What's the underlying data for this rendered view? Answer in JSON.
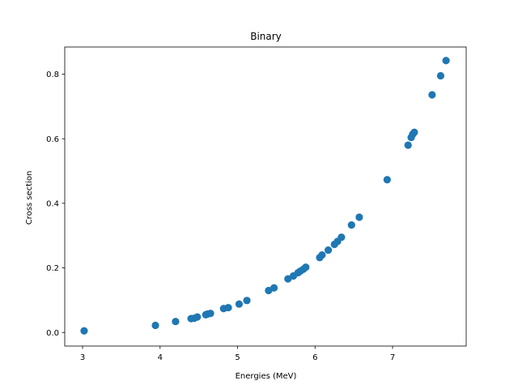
{
  "chart_data": {
    "type": "scatter",
    "title": "Binary",
    "xlabel": "Energies (MeV)",
    "ylabel": "Cross section",
    "xlim": [
      2.77,
      7.95
    ],
    "ylim": [
      -0.042,
      0.884
    ],
    "xticks": [
      3,
      4,
      5,
      6,
      7
    ],
    "xtick_labels": [
      "3",
      "4",
      "5",
      "6",
      "7"
    ],
    "yticks": [
      0.0,
      0.2,
      0.4,
      0.6,
      0.8
    ],
    "ytick_labels": [
      "0.0",
      "0.2",
      "0.4",
      "0.6",
      "0.8"
    ],
    "grid": false,
    "colors": {
      "marker": "#1f77b4"
    },
    "series": [
      {
        "points": [
          [
            3.02,
            0.005
          ],
          [
            3.94,
            0.022
          ],
          [
            4.2,
            0.034
          ],
          [
            4.4,
            0.043
          ],
          [
            4.44,
            0.044
          ],
          [
            4.48,
            0.048
          ],
          [
            4.59,
            0.055
          ],
          [
            4.61,
            0.057
          ],
          [
            4.65,
            0.059
          ],
          [
            4.82,
            0.074
          ],
          [
            4.88,
            0.077
          ],
          [
            5.02,
            0.088
          ],
          [
            5.12,
            0.099
          ],
          [
            5.4,
            0.13
          ],
          [
            5.47,
            0.138
          ],
          [
            5.65,
            0.166
          ],
          [
            5.72,
            0.175
          ],
          [
            5.78,
            0.185
          ],
          [
            5.81,
            0.19
          ],
          [
            5.85,
            0.196
          ],
          [
            5.88,
            0.202
          ],
          [
            6.06,
            0.232
          ],
          [
            6.09,
            0.24
          ],
          [
            6.17,
            0.255
          ],
          [
            6.25,
            0.273
          ],
          [
            6.29,
            0.282
          ],
          [
            6.34,
            0.295
          ],
          [
            6.47,
            0.333
          ],
          [
            6.57,
            0.357
          ],
          [
            6.93,
            0.473
          ],
          [
            7.2,
            0.58
          ],
          [
            7.24,
            0.604
          ],
          [
            7.26,
            0.614
          ],
          [
            7.28,
            0.62
          ],
          [
            7.51,
            0.736
          ],
          [
            7.62,
            0.795
          ],
          [
            7.69,
            0.842
          ]
        ]
      }
    ]
  }
}
